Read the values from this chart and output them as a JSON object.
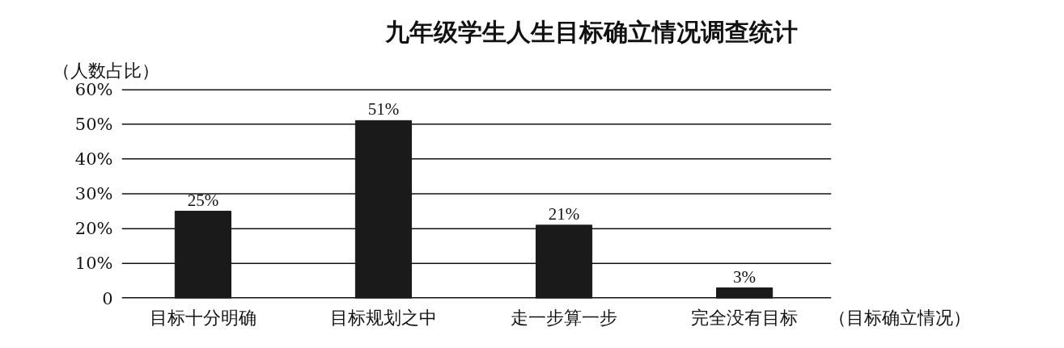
{
  "chart_data": {
    "type": "bar",
    "title": "九年级学生人生目标确立情况调查统计",
    "ylabel": "（人数占比）",
    "xlabel": "（目标确立情况）",
    "categories": [
      "目标十分明确",
      "目标规划之中",
      "走一步算一步",
      "完全没有目标"
    ],
    "values": [
      25,
      51,
      21,
      3
    ],
    "color": "#1a1a1a",
    "value_labels": [
      "25%",
      "51%",
      "21%",
      "3%"
    ],
    "ylim": [
      0,
      60
    ],
    "yticks": [
      0,
      {
        "value": 10,
        "label": "10%"
      },
      {
        "value": 20,
        "label": "20%"
      },
      {
        "value": 30,
        "label": "30%"
      },
      {
        "value": 40,
        "label": "40%"
      },
      {
        "value": 50,
        "label": "50%"
      },
      {
        "value": 60,
        "label": "60%"
      }
    ],
    "grid": "y"
  }
}
